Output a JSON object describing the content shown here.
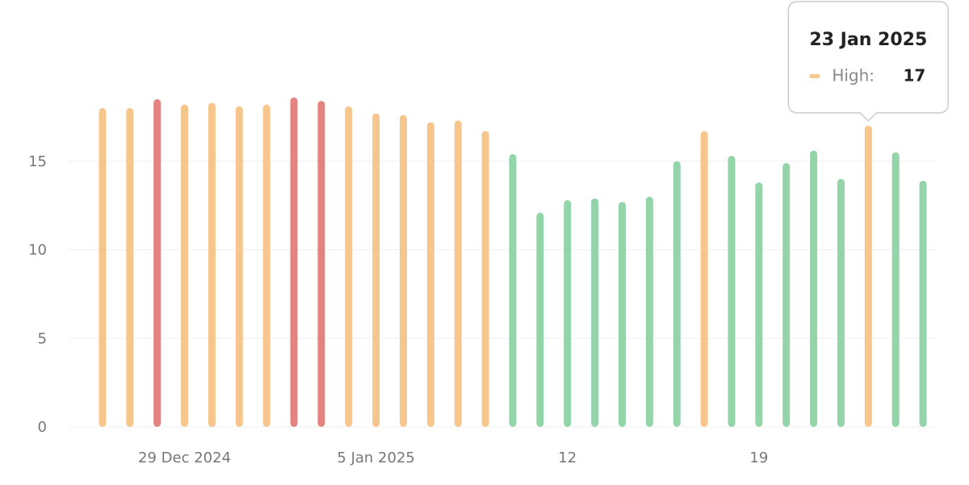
{
  "chart_data": {
    "type": "bar",
    "categories": [
      null,
      null,
      null,
      "29 Dec 2024",
      null,
      null,
      null,
      null,
      null,
      null,
      "5 Jan 2025",
      null,
      null,
      null,
      null,
      null,
      null,
      "12",
      null,
      null,
      null,
      null,
      null,
      null,
      "19",
      null,
      null,
      null,
      null,
      null,
      null
    ],
    "values": [
      18.0,
      18.0,
      18.5,
      18.2,
      18.3,
      18.1,
      18.2,
      18.6,
      18.4,
      18.1,
      17.7,
      17.6,
      17.2,
      17.3,
      16.7,
      15.4,
      12.1,
      12.8,
      12.9,
      12.7,
      13.0,
      15.0,
      16.7,
      15.3,
      13.8,
      14.9,
      15.6,
      14.0,
      17.0,
      15.5,
      13.9
    ],
    "colors": [
      "#f7c68c",
      "#f7c68c",
      "#e4837f",
      "#f7c68c",
      "#f7c68c",
      "#f7c68c",
      "#f7c68c",
      "#e4837f",
      "#e4837f",
      "#f7c68c",
      "#f7c68c",
      "#f7c68c",
      "#f7c68c",
      "#f7c68c",
      "#f7c68c",
      "#93d5a8",
      "#93d5a8",
      "#93d5a8",
      "#93d5a8",
      "#93d5a8",
      "#93d5a8",
      "#93d5a8",
      "#f7c68c",
      "#93d5a8",
      "#93d5a8",
      "#93d5a8",
      "#93d5a8",
      "#93d5a8",
      "#f7c68c",
      "#93d5a8",
      "#93d5a8"
    ],
    "ylim": [
      0,
      20
    ],
    "yticks": [
      0,
      5,
      10,
      15
    ],
    "grid": true,
    "tooltip": {
      "title": "23 Jan 2025",
      "label": "High:",
      "value": 17
    }
  }
}
